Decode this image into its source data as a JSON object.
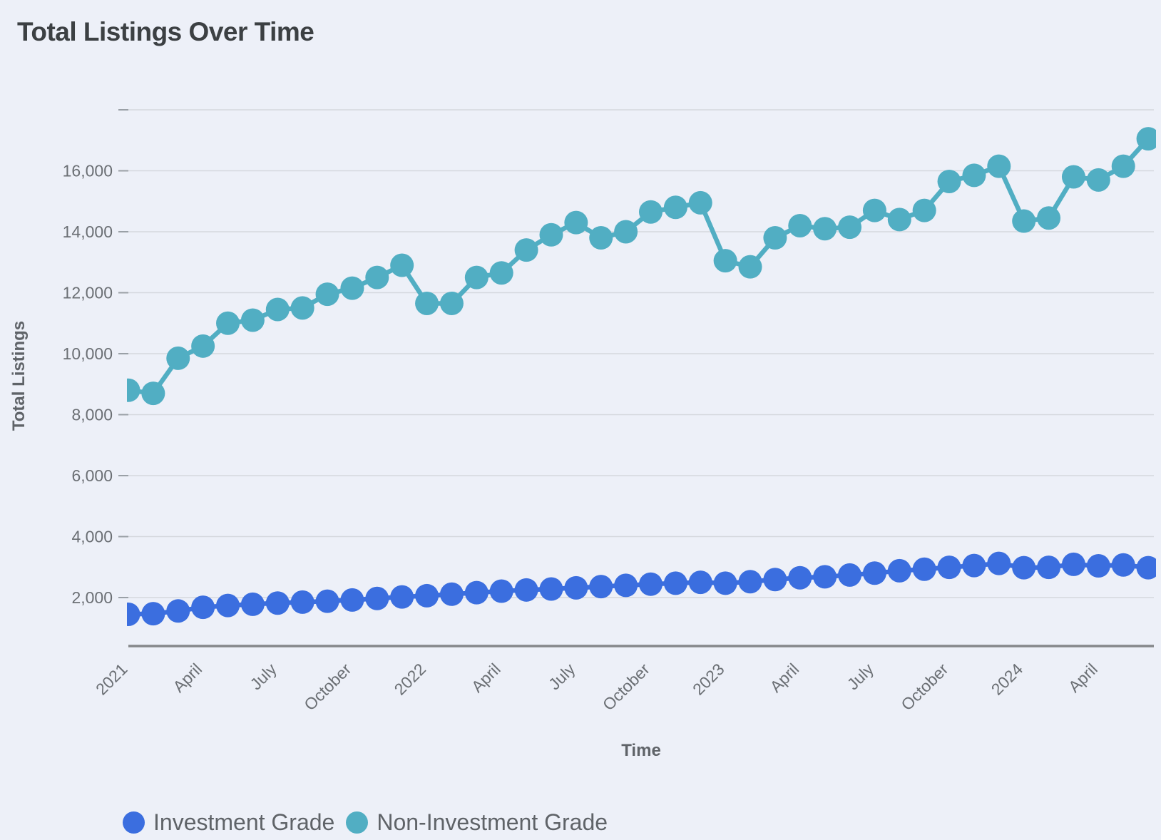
{
  "title": "Total Listings Over Time",
  "colors": {
    "background": "#edf0f8",
    "grid_line": "#d5d8de",
    "tick_mark": "#9aa0a6",
    "axis_line": "#85878a",
    "tick_text": "#6b6f74",
    "axis_title_text": "#5f6368",
    "title_text": "#3c4043",
    "legend_text": "#5f6368",
    "investment_grade": "#3b6edf",
    "non_investment_grade": "#51aec3"
  },
  "chart_data": {
    "type": "line",
    "title": "Total Listings Over Time",
    "xlabel": "Time",
    "ylabel": "Total Listings",
    "grid": true,
    "legend_position": "bottom",
    "ylim": [
      400,
      18350
    ],
    "yticks": [
      2000,
      4000,
      6000,
      8000,
      10000,
      12000,
      14000,
      16000
    ],
    "unlabeled_top_gridline_value": 18000,
    "x_tick_labels": [
      "2021",
      "April",
      "July",
      "October",
      "2022",
      "April",
      "July",
      "October",
      "2023",
      "April",
      "July",
      "October",
      "2024",
      "April"
    ],
    "x_tick_month_indices": [
      0,
      3,
      6,
      9,
      12,
      15,
      18,
      21,
      24,
      27,
      30,
      33,
      36,
      39
    ],
    "x": [
      "Jan 2021",
      "Feb 2021",
      "Mar 2021",
      "Apr 2021",
      "May 2021",
      "Jun 2021",
      "Jul 2021",
      "Aug 2021",
      "Sep 2021",
      "Oct 2021",
      "Nov 2021",
      "Dec 2021",
      "Jan 2022",
      "Feb 2022",
      "Mar 2022",
      "Apr 2022",
      "May 2022",
      "Jun 2022",
      "Jul 2022",
      "Aug 2022",
      "Sep 2022",
      "Oct 2022",
      "Nov 2022",
      "Dec 2022",
      "Jan 2023",
      "Feb 2023",
      "Mar 2023",
      "Apr 2023",
      "May 2023",
      "Jun 2023",
      "Jul 2023",
      "Aug 2023",
      "Sep 2023",
      "Oct 2023",
      "Nov 2023",
      "Dec 2023",
      "Jan 2024",
      "Feb 2024",
      "Mar 2024",
      "Apr 2024",
      "May 2024",
      "Jun 2024"
    ],
    "series": [
      {
        "name": "Investment Grade",
        "color": "#3b6edf",
        "values": [
          1450,
          1470,
          1560,
          1680,
          1740,
          1780,
          1820,
          1850,
          1880,
          1920,
          1970,
          2020,
          2060,
          2110,
          2160,
          2210,
          2250,
          2280,
          2320,
          2360,
          2400,
          2440,
          2470,
          2500,
          2470,
          2520,
          2590,
          2650,
          2680,
          2740,
          2800,
          2880,
          2930,
          2990,
          3050,
          3120,
          2980,
          2990,
          3090,
          3040,
          3070,
          2980
        ]
      },
      {
        "name": "Non-Investment Grade",
        "color": "#51aec3",
        "values": [
          8800,
          8700,
          9850,
          10250,
          11000,
          11100,
          11450,
          11500,
          11950,
          12150,
          12500,
          12900,
          11650,
          11650,
          12500,
          12650,
          13400,
          13900,
          14300,
          13800,
          14000,
          14650,
          14800,
          14950,
          13050,
          12850,
          13800,
          14200,
          14100,
          14150,
          14700,
          14400,
          14700,
          15650,
          15850,
          16150,
          14350,
          14450,
          15800,
          15700,
          16150,
          17050
        ]
      }
    ]
  },
  "legend": {
    "items": [
      "Investment Grade",
      "Non-Investment Grade"
    ]
  }
}
